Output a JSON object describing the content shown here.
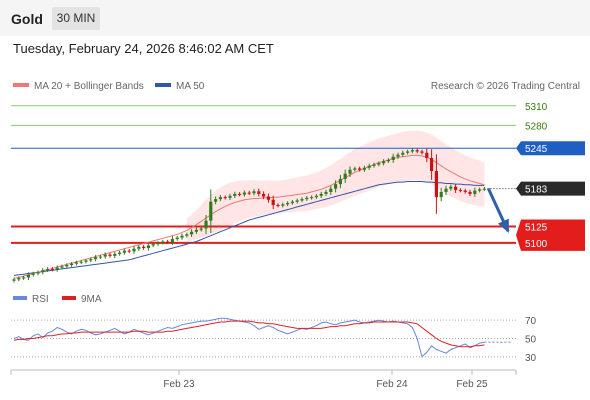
{
  "header": {
    "instrument": "Gold",
    "timeframe": "30 MIN"
  },
  "timestamp": "Tuesday, February 24, 2026 8:46:02 AM CET",
  "legend": {
    "ma20": "MA 20 + Bollinger Bands",
    "ma50": "MA 50",
    "credit": "Research © 2026 Trading Central"
  },
  "colors": {
    "up_candle": "#2e7d1e",
    "down_candle": "#cc1111",
    "ma20": "#ee7777",
    "ma50": "#3355aa",
    "bollinger_fill": "#ffe0e0",
    "resistance_green": "#88cc66",
    "blue_level": "#1f5fc4",
    "support_red": "#e31c1c",
    "arrow": "#2f5fa8",
    "rsi": "#6688dd",
    "rsi_ma": "#dd2222"
  },
  "chart_data": [
    {
      "type": "candlestick",
      "title": "",
      "x_ticks": [
        "Feb 23",
        "Feb 24",
        "Feb 25"
      ],
      "ylim": [
        5040,
        5325
      ],
      "levels": [
        {
          "label": "5310",
          "value": 5310,
          "style": "resistance"
        },
        {
          "label": "5280",
          "value": 5280,
          "style": "resistance"
        },
        {
          "label": "5245",
          "value": 5245,
          "style": "pivot"
        },
        {
          "label": "5183",
          "value": 5183,
          "style": "last"
        },
        {
          "label": "5125",
          "value": 5125,
          "style": "support"
        },
        {
          "label": "5100",
          "value": 5100,
          "style": "support"
        }
      ],
      "close_series": [
        5044,
        5046,
        5047,
        5051,
        5053,
        5055,
        5058,
        5060,
        5059,
        5062,
        5064,
        5066,
        5068,
        5070,
        5071,
        5073,
        5075,
        5078,
        5079,
        5082,
        5080,
        5083,
        5085,
        5088,
        5087,
        5091,
        5094,
        5092,
        5096,
        5098,
        5100,
        5102,
        5101,
        5106,
        5108,
        5111,
        5113,
        5117,
        5120,
        5122,
        5134,
        5163,
        5167,
        5170,
        5169,
        5172,
        5175,
        5174,
        5177,
        5176,
        5179,
        5175,
        5171,
        5166,
        5158,
        5157,
        5159,
        5161,
        5163,
        5165,
        5167,
        5169,
        5170,
        5172,
        5175,
        5178,
        5183,
        5190,
        5198,
        5206,
        5212,
        5214,
        5212,
        5215,
        5218,
        5220,
        5222,
        5225,
        5227,
        5232,
        5235,
        5238,
        5240,
        5242,
        5240,
        5238,
        5230,
        5210,
        5170,
        5178,
        5183,
        5186,
        5181,
        5180,
        5178,
        5175,
        5180,
        5182,
        5183
      ],
      "ma20": [
        5046,
        5047,
        5049,
        5051,
        5053,
        5055,
        5057,
        5059,
        5061,
        5063,
        5065,
        5067,
        5069,
        5071,
        5073,
        5075,
        5077,
        5079,
        5081,
        5083,
        5085,
        5087,
        5089,
        5091,
        5093,
        5095,
        5097,
        5099,
        5101,
        5103,
        5105,
        5107,
        5109,
        5111,
        5113,
        5116,
        5119,
        5123,
        5128,
        5133,
        5138,
        5143,
        5148,
        5152,
        5156,
        5159,
        5162,
        5164,
        5166,
        5167,
        5168,
        5168,
        5169,
        5169,
        5170,
        5170,
        5171,
        5172,
        5173,
        5174,
        5175,
        5176,
        5178,
        5180,
        5182,
        5185,
        5188,
        5192,
        5196,
        5200,
        5204,
        5208,
        5211,
        5214,
        5217,
        5220,
        5223,
        5225,
        5227,
        5229,
        5231,
        5232,
        5233,
        5234,
        5234,
        5233,
        5231,
        5228,
        5223,
        5218,
        5213,
        5209,
        5205,
        5201,
        5198,
        5195,
        5193,
        5191,
        5189
      ],
      "ma50": [
        5050,
        5051,
        5052,
        5053,
        5054,
        5055,
        5056,
        5057,
        5058,
        5059,
        5060,
        5061,
        5062,
        5063,
        5064,
        5065,
        5066,
        5067,
        5068,
        5069,
        5070,
        5071,
        5072,
        5073,
        5074,
        5076,
        5078,
        5080,
        5082,
        5084,
        5086,
        5088,
        5090,
        5092,
        5094,
        5096,
        5098,
        5100,
        5102,
        5105,
        5108,
        5111,
        5114,
        5117,
        5120,
        5123,
        5126,
        5129,
        5132,
        5135,
        5137,
        5139,
        5141,
        5143,
        5145,
        5147,
        5149,
        5151,
        5153,
        5155,
        5157,
        5159,
        5161,
        5163,
        5165,
        5167,
        5169,
        5171,
        5173,
        5175,
        5177,
        5179,
        5181,
        5183,
        5185,
        5187,
        5189,
        5190,
        5191,
        5192,
        5193,
        5193,
        5194,
        5194,
        5194,
        5194,
        5193,
        5193,
        5192,
        5192,
        5191,
        5191,
        5190,
        5190,
        5189,
        5189,
        5188,
        5188,
        5188
      ],
      "bollinger_halfwidth": [
        8,
        8,
        8,
        9,
        9,
        9,
        9,
        10,
        10,
        10,
        10,
        10,
        11,
        11,
        11,
        11,
        11,
        11,
        12,
        12,
        12,
        12,
        12,
        12,
        13,
        13,
        13,
        13,
        13,
        14,
        14,
        14,
        15,
        15,
        16,
        17,
        18,
        20,
        22,
        25,
        28,
        30,
        32,
        33,
        33,
        33,
        32,
        31,
        30,
        29,
        28,
        27,
        26,
        26,
        25,
        25,
        25,
        25,
        26,
        26,
        27,
        27,
        28,
        28,
        29,
        30,
        31,
        32,
        33,
        34,
        35,
        36,
        36,
        37,
        37,
        37,
        37,
        37,
        37,
        37,
        37,
        38,
        38,
        38,
        38,
        38,
        38,
        38,
        38,
        38,
        38,
        38,
        37,
        37,
        36,
        36,
        35,
        35,
        34
      ],
      "projection": {
        "from": 5183,
        "to": 5118,
        "direction": "down"
      }
    },
    {
      "type": "line",
      "title": "RSI",
      "series": [
        {
          "name": "RSI",
          "color": "#6688dd"
        },
        {
          "name": "9MA",
          "color": "#dd2222"
        }
      ],
      "y_ticks": [
        70,
        50,
        30
      ],
      "ylim": [
        20,
        80
      ],
      "rsi": [
        50,
        52,
        49,
        48,
        53,
        55,
        51,
        56,
        58,
        62,
        60,
        57,
        55,
        58,
        60,
        59,
        56,
        54,
        55,
        57,
        59,
        61,
        58,
        55,
        57,
        60,
        58,
        56,
        54,
        56,
        58,
        60,
        62,
        61,
        63,
        65,
        66,
        67,
        68,
        69,
        69,
        70,
        71,
        72,
        72,
        71,
        70,
        69,
        68,
        67,
        64,
        60,
        62,
        64,
        62,
        59,
        57,
        55,
        57,
        59,
        61,
        60,
        62,
        64,
        67,
        68,
        66,
        65,
        67,
        68,
        69,
        70,
        68,
        67,
        68,
        69,
        70,
        69,
        68,
        69,
        68,
        67,
        66,
        62,
        50,
        30,
        35,
        42,
        38,
        36,
        34,
        38,
        40,
        42,
        44,
        40,
        42,
        45,
        46
      ],
      "rsi_ma": [
        48,
        49,
        49,
        50,
        50,
        51,
        52,
        53,
        53,
        54,
        55,
        55,
        56,
        56,
        57,
        57,
        57,
        57,
        57,
        57,
        57,
        57,
        57,
        57,
        57,
        58,
        58,
        58,
        57,
        57,
        57,
        57,
        58,
        58,
        59,
        60,
        61,
        62,
        63,
        64,
        65,
        66,
        67,
        68,
        68,
        69,
        69,
        69,
        69,
        69,
        68,
        67,
        67,
        66,
        66,
        65,
        64,
        63,
        62,
        61,
        61,
        61,
        61,
        61,
        61,
        62,
        63,
        63,
        64,
        64,
        65,
        66,
        66,
        67,
        67,
        68,
        68,
        68,
        68,
        68,
        68,
        68,
        68,
        67,
        66,
        62,
        58,
        54,
        50,
        47,
        45,
        43,
        42,
        41,
        41,
        41,
        42,
        42,
        43
      ]
    }
  ]
}
